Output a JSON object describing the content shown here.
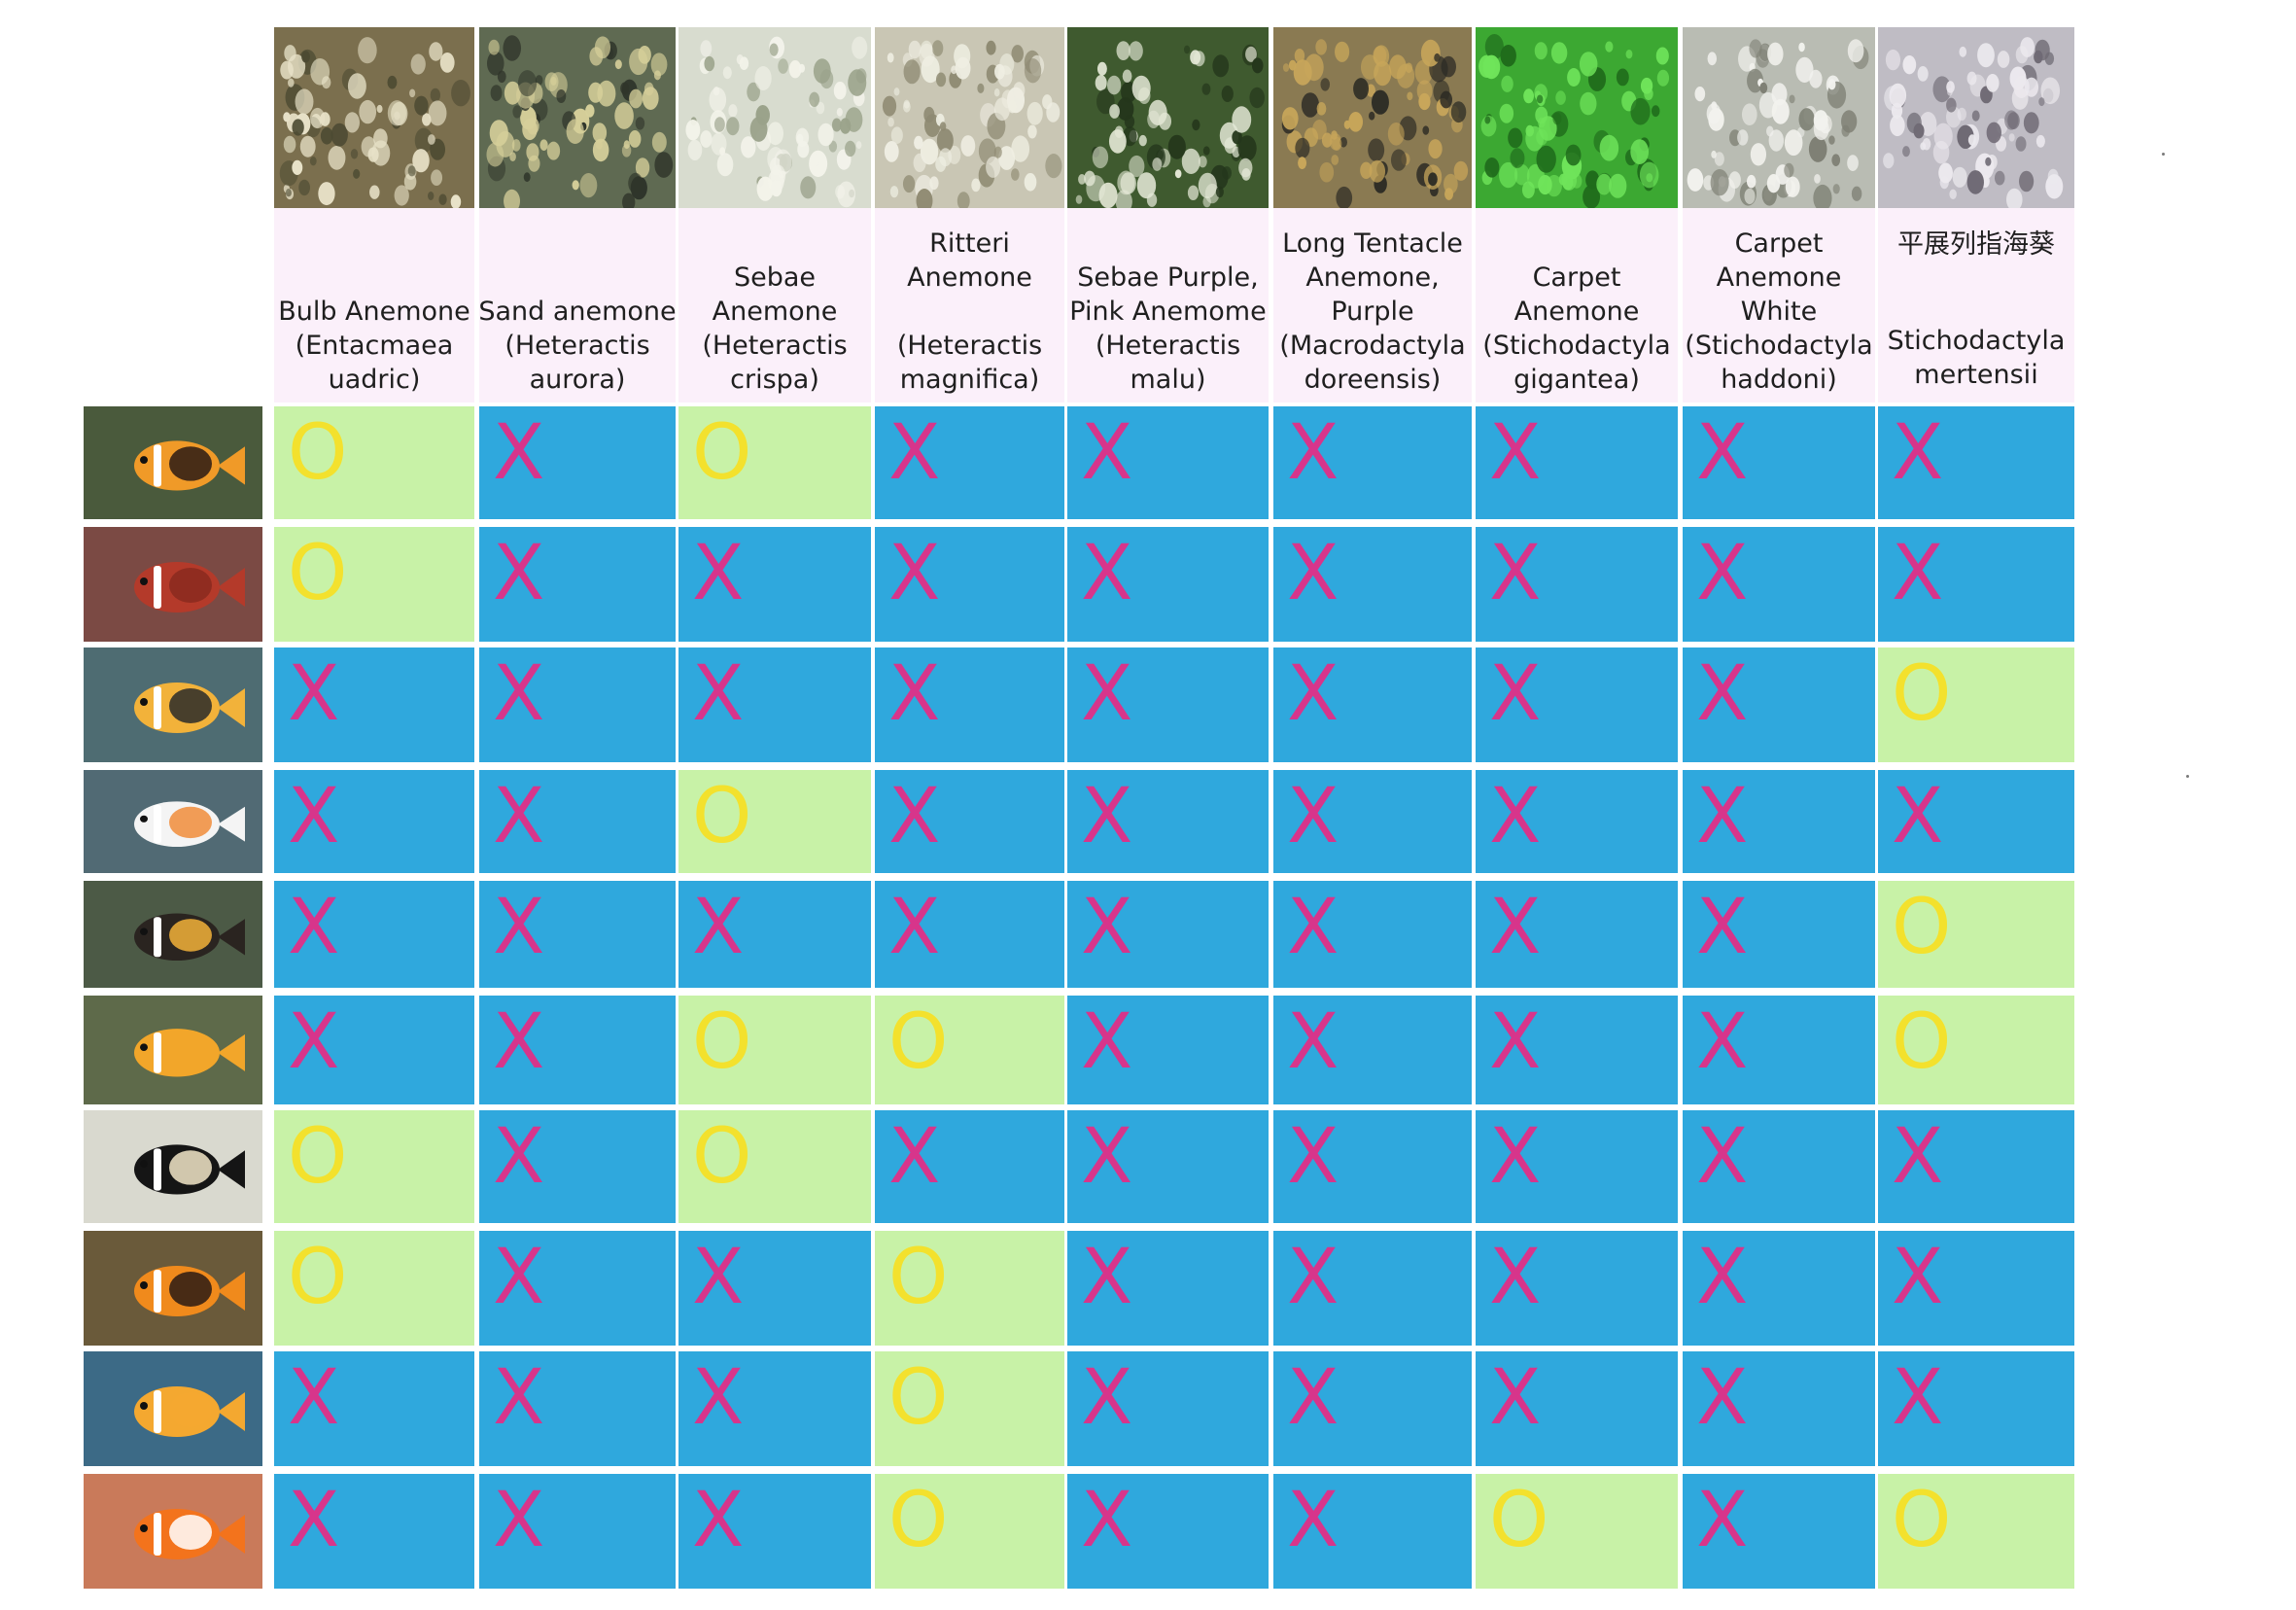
{
  "anemones": [
    {
      "lines": [
        "Bulb Anemone",
        "(Entacmaea",
        "uadric)"
      ]
    },
    {
      "lines": [
        "Sand anemone",
        "(Heteractis",
        "aurora)"
      ]
    },
    {
      "lines": [
        "Sebae",
        "Anemone",
        "(Heteractis",
        "crispa)"
      ]
    },
    {
      "lines": [
        "Ritteri",
        "Anemone",
        "",
        "(Heteractis",
        "magnifica)"
      ]
    },
    {
      "lines": [
        "Sebae Purple,",
        "Pink Anemome",
        "(Heteractis",
        "malu)"
      ]
    },
    {
      "lines": [
        "Long Tentacle",
        "Anemone,",
        "Purple",
        "(Macrodactyla",
        "doreensis)"
      ]
    },
    {
      "lines": [
        "Carpet",
        "Anemone",
        "(Stichodactyla",
        "gigantea)"
      ]
    },
    {
      "lines": [
        "Carpet",
        "Anemone",
        "White",
        "(Stichodactyla",
        "haddoni)"
      ]
    },
    {
      "lines": [
        "平展列指海葵",
        "Stichodactyla",
        "mertensii"
      ]
    }
  ],
  "fish_rows": [
    {
      "fish_icon": "clownfish-icon",
      "marks": [
        "O",
        "X",
        "O",
        "X",
        "X",
        "X",
        "X",
        "X",
        "X"
      ]
    },
    {
      "fish_icon": "clownfish-icon",
      "marks": [
        "O",
        "X",
        "X",
        "X",
        "X",
        "X",
        "X",
        "X",
        "X"
      ]
    },
    {
      "fish_icon": "clownfish-icon",
      "marks": [
        "X",
        "X",
        "X",
        "X",
        "X",
        "X",
        "X",
        "X",
        "O"
      ]
    },
    {
      "fish_icon": "clownfish-icon",
      "marks": [
        "X",
        "X",
        "O",
        "X",
        "X",
        "X",
        "X",
        "X",
        "X"
      ]
    },
    {
      "fish_icon": "clownfish-icon",
      "marks": [
        "X",
        "X",
        "X",
        "X",
        "X",
        "X",
        "X",
        "X",
        "O"
      ]
    },
    {
      "fish_icon": "clownfish-icon",
      "marks": [
        "X",
        "X",
        "O",
        "O",
        "X",
        "X",
        "X",
        "X",
        "O"
      ]
    },
    {
      "fish_icon": "clownfish-icon",
      "marks": [
        "O",
        "X",
        "O",
        "X",
        "X",
        "X",
        "X",
        "X",
        "X"
      ]
    },
    {
      "fish_icon": "clownfish-icon",
      "marks": [
        "O",
        "X",
        "X",
        "O",
        "X",
        "X",
        "X",
        "X",
        "X"
      ]
    },
    {
      "fish_icon": "clownfish-icon",
      "marks": [
        "X",
        "X",
        "X",
        "O",
        "X",
        "X",
        "X",
        "X",
        "X"
      ]
    },
    {
      "fish_icon": "clownfish-icon",
      "marks": [
        "X",
        "X",
        "X",
        "O",
        "X",
        "X",
        "O",
        "X",
        "O"
      ]
    }
  ],
  "colors": {
    "compatible_cell": "#c8f2a7",
    "incompatible_cell": "#2fa8dd",
    "x_mark": "#d7358b",
    "o_mark": "#f3e12d",
    "header_bg": "#fbf0fa"
  },
  "anemone_photo_palettes": [
    [
      "#7b6f4e",
      "#e8e2c8",
      "#4c4a32"
    ],
    [
      "#5f6a52",
      "#d6cf9a",
      "#2f352a"
    ],
    [
      "#d8dccf",
      "#f3f3ea",
      "#9aa28a"
    ],
    [
      "#c9c6b4",
      "#efeee2",
      "#8e8a72"
    ],
    [
      "#3f5a2f",
      "#e4e8d6",
      "#24361b"
    ],
    [
      "#8a7a52",
      "#c8a65a",
      "#2b2a24"
    ],
    [
      "#3ca832",
      "#6fe45a",
      "#1f6b1b"
    ],
    [
      "#b9bcb3",
      "#f2f2ee",
      "#7e8074"
    ],
    [
      "#bfbcc4",
      "#ece9ee",
      "#6f6a74"
    ]
  ],
  "fish_photo_palettes": [
    {
      "bg": "#4a5a3c",
      "body": "#f09a28",
      "patch": "#2a1a14",
      "stripe": "#ffffff"
    },
    {
      "bg": "#7b4a44",
      "body": "#b43a2a",
      "patch": "#8a2a1e",
      "stripe": "#ffffff"
    },
    {
      "bg": "#4e6c72",
      "body": "#f2b23a",
      "patch": "#2a2a2a",
      "stripe": "#ffffff"
    },
    {
      "bg": "#516a74",
      "body": "#f4f4f4",
      "patch": "#f08c3a",
      "stripe": "#ffffff"
    },
    {
      "bg": "#4c5a46",
      "body": "#2a2420",
      "patch": "#f2b23a",
      "stripe": "#ffffff"
    },
    {
      "bg": "#5e6a4a",
      "body": "#f2a62a",
      "patch": "#f2a62a",
      "stripe": "#ffffff"
    },
    {
      "bg": "#d9d9cf",
      "body": "#151515",
      "patch": "#f2e6c8",
      "stripe": "#ffffff"
    },
    {
      "bg": "#6a5a3a",
      "body": "#f08a1c",
      "patch": "#2a1a14",
      "stripe": "#ffffff"
    },
    {
      "bg": "#3c6a86",
      "body": "#f4a830",
      "patch": "#f4a830",
      "stripe": "#ffffff"
    },
    {
      "bg": "#c97a5a",
      "body": "#f3731c",
      "patch": "#ffffff",
      "stripe": "#ffffff"
    }
  ]
}
